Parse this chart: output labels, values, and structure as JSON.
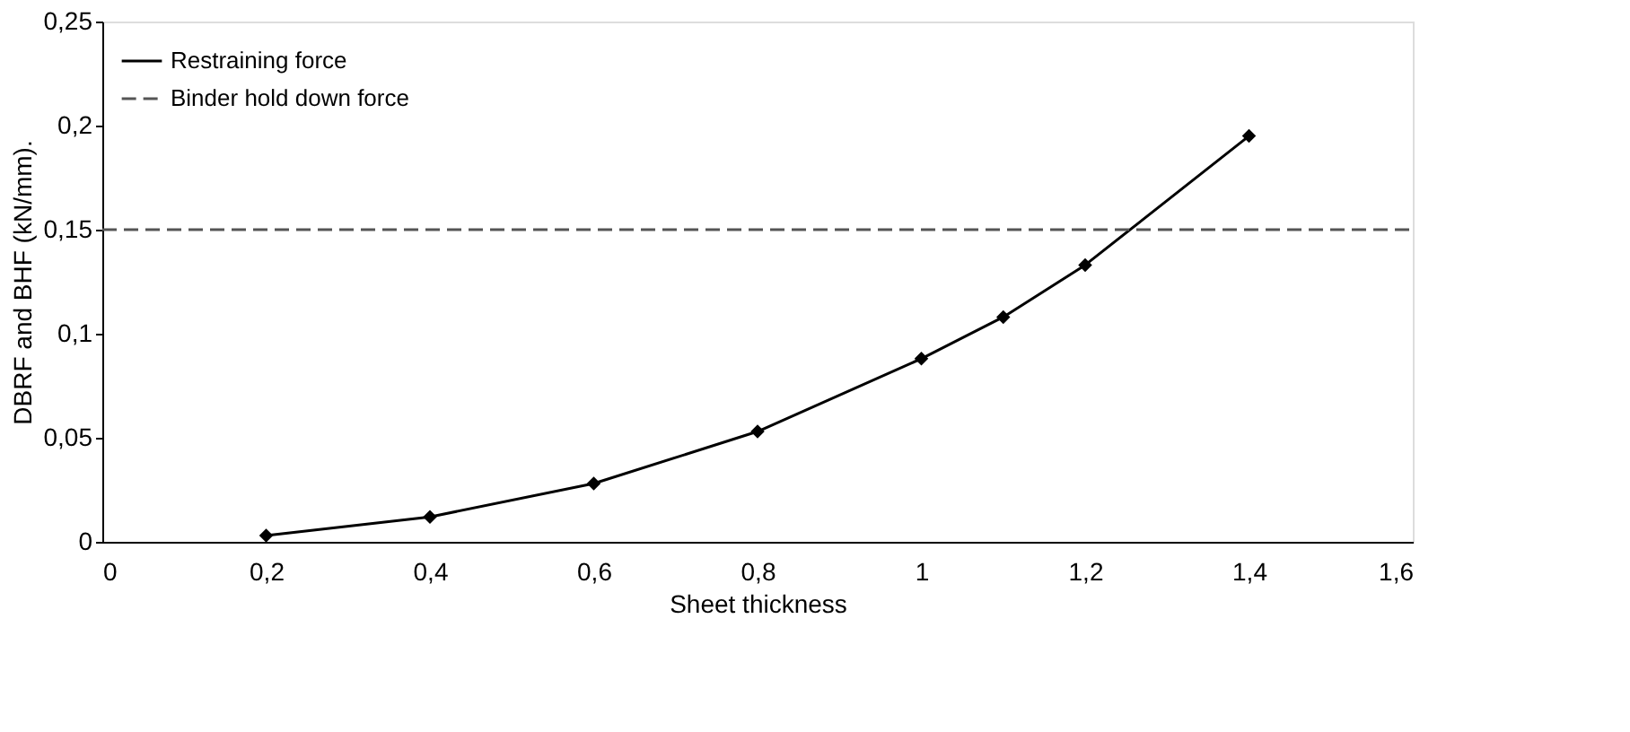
{
  "chart_data": {
    "type": "line",
    "xlabel": "Sheet thickness",
    "ylabel": "DBRF and BHF (kN/mm).",
    "xlim": [
      0,
      1.6
    ],
    "ylim": [
      0,
      0.25
    ],
    "xticks": [
      0,
      {
        "value": 0.2,
        "label": "0,2"
      },
      {
        "value": 0.4,
        "label": "0,4"
      },
      {
        "value": 0.6,
        "label": "0,6"
      },
      {
        "value": 0.8,
        "label": "0,8"
      },
      1,
      {
        "value": 1.2,
        "label": "1,2"
      },
      {
        "value": 1.4,
        "label": "1,4"
      },
      {
        "value": 1.6,
        "label": "1,6"
      }
    ],
    "yticks": [
      0,
      {
        "value": 0.05,
        "label": "0,05"
      },
      {
        "value": 0.1,
        "label": "0,1"
      },
      {
        "value": 0.15,
        "label": "0,15"
      },
      {
        "value": 0.2,
        "label": "0,2"
      },
      {
        "value": 0.25,
        "label": "0,25"
      }
    ],
    "grid": false,
    "legend": "top left",
    "series": [
      {
        "name": "Restraining force",
        "color": "#000000",
        "marker": "diamond",
        "line_style": "solid",
        "x": [
          0.2,
          0.4,
          0.6,
          0.8,
          1.0,
          1.1,
          1.2,
          1.4
        ],
        "values": [
          0.003,
          0.012,
          0.028,
          0.053,
          0.088,
          0.108,
          0.133,
          0.195
        ]
      },
      {
        "name": "Binder hold down force",
        "color": "#555555",
        "marker": "none",
        "line_style": "dashed",
        "x": [
          0,
          1.6
        ],
        "values": [
          0.15,
          0.15
        ]
      }
    ]
  }
}
